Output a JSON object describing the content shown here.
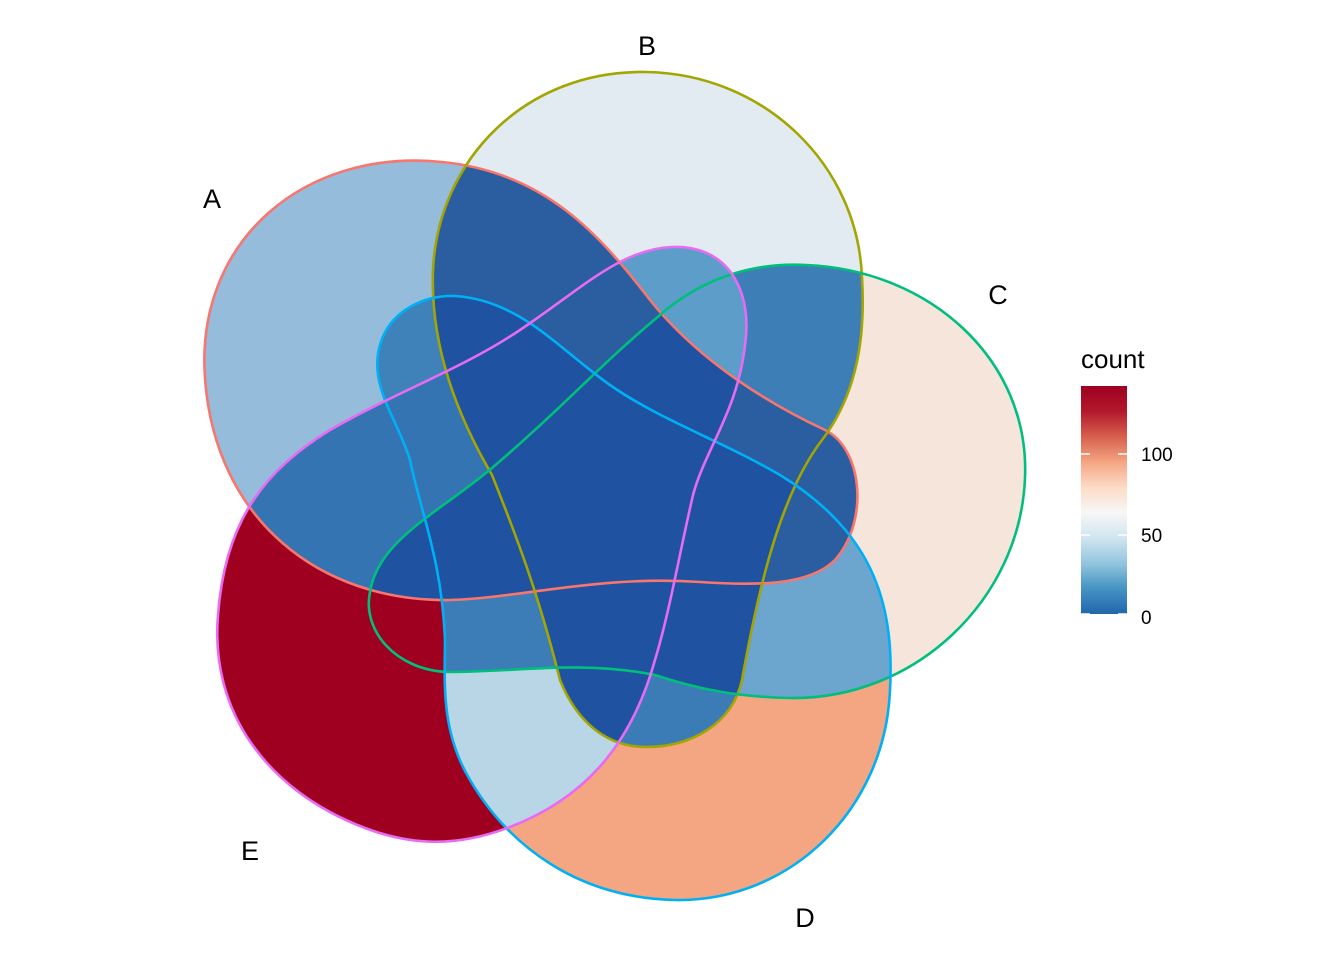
{
  "diagram": {
    "type": "venn-5-set",
    "sets": [
      {
        "name": "A",
        "outline_color": "#F8766D"
      },
      {
        "name": "B",
        "outline_color": "#A3A500"
      },
      {
        "name": "C",
        "outline_color": "#00BF7D"
      },
      {
        "name": "D",
        "outline_color": "#00B0F6"
      },
      {
        "name": "E",
        "outline_color": "#E76BF3"
      }
    ],
    "regions": {
      "A_only": {
        "fill": "#95BCDB"
      },
      "B_only": {
        "fill": "#E1EBF1"
      },
      "C_only": {
        "fill": "#F6E5DA"
      },
      "D_only": {
        "fill": "#F4A582"
      },
      "E_only": {
        "fill": "#A00020"
      },
      "D_E": {
        "fill": "#B9D6E7"
      },
      "C_D": {
        "fill": "#6CA5CD"
      },
      "A_D": {
        "fill": "#3F82BA"
      },
      "A_E": {
        "fill": "#3574B2"
      },
      "B_C": {
        "fill": "#3E7EB7"
      },
      "B_D": {
        "fill": "#3B7BB6"
      },
      "D_E_C": {
        "fill": "#3D7DB7"
      },
      "A_B": {
        "fill": "#2A5EA1"
      },
      "B_E": {
        "fill": "#5C9DCA"
      },
      "core": {
        "fill": "#1F52A0"
      }
    }
  },
  "legend": {
    "title": "count",
    "ticks": [
      "100",
      "50",
      "0"
    ],
    "gradient": [
      "#2166AC",
      "#4393C3",
      "#92C5DE",
      "#D1E5F0",
      "#F7F7F7",
      "#FDDBC7",
      "#F4A582",
      "#D6604D",
      "#B2182B",
      "#9E0020"
    ]
  }
}
